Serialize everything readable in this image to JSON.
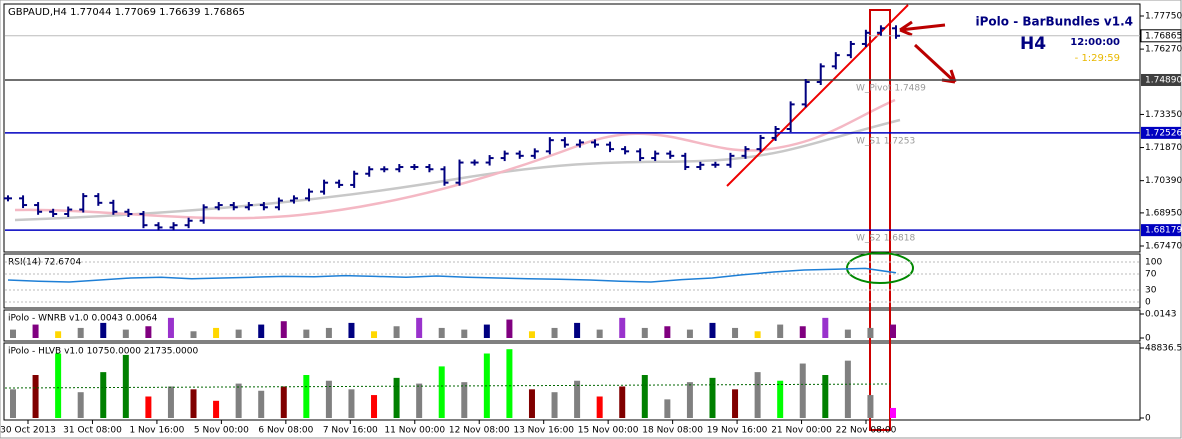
{
  "header": "GBPAUD,H4  1.77044 1.77069 1.76639 1.76865",
  "indicator": {
    "name": "iPolo - BarBundles v1.4",
    "timeframe": "H4",
    "time": "12:00:00",
    "countdown": "- 1:29:59"
  },
  "price_axis": {
    "lim": [
      1.6747,
      1.7775
    ],
    "ticks": [
      {
        "value": 1.7775,
        "label": "1.77750"
      },
      {
        "value": 1.7627,
        "label": "1.76270"
      },
      {
        "value": 1.7335,
        "label": "1.73350"
      },
      {
        "value": 1.7187,
        "label": "1.71870"
      },
      {
        "value": 1.7039,
        "label": "1.70390"
      },
      {
        "value": 1.6895,
        "label": "1.68950"
      },
      {
        "value": 1.6747,
        "label": "1.67470"
      }
    ]
  },
  "current_price": {
    "value": 1.76865,
    "label": "1.76865"
  },
  "levels": [
    {
      "value": 1.7489,
      "axis_label": "1.74890",
      "name": "W_Pivot 1.7489",
      "color": "#404040"
    },
    {
      "value": 1.72526,
      "axis_label": "1.72526",
      "name": "W_S1 1.7253",
      "color": "#0000c0"
    },
    {
      "value": 1.68179,
      "axis_label": "1.68179",
      "name": "W_S2 1.6818",
      "color": "#0000c0"
    }
  ],
  "closes": [
    1.696,
    1.693,
    1.69,
    1.689,
    1.691,
    1.697,
    1.694,
    1.69,
    1.689,
    1.684,
    1.683,
    1.684,
    1.686,
    1.692,
    1.693,
    1.692,
    1.693,
    1.692,
    1.695,
    1.696,
    1.699,
    1.703,
    1.702,
    1.707,
    1.709,
    1.709,
    1.71,
    1.71,
    1.709,
    1.703,
    1.712,
    1.712,
    1.714,
    1.716,
    1.715,
    1.717,
    1.722,
    1.72,
    1.721,
    1.72,
    1.718,
    1.717,
    1.714,
    1.716,
    1.715,
    1.71,
    1.711,
    1.711,
    1.715,
    1.718,
    1.723,
    1.727,
    1.738,
    1.748,
    1.755,
    1.76,
    1.765,
    1.77,
    1.772,
    1.76865
  ],
  "rsi": {
    "title": "RSI(14) 72.6704",
    "lim": [
      0,
      100
    ],
    "ticks": [
      100,
      70,
      30,
      0
    ],
    "values": [
      55,
      52,
      50,
      55,
      60,
      62,
      58,
      60,
      62,
      64,
      63,
      66,
      64,
      62,
      65,
      62,
      60,
      58,
      57,
      55,
      52,
      50,
      56,
      60,
      68,
      75,
      80,
      82,
      84,
      73
    ]
  },
  "wnrb": {
    "title": "iPolo - WNRB v1.0 0.0043 0.0064",
    "lim": [
      0,
      0.0143
    ],
    "ticks": [
      {
        "value": 0.0143,
        "label": "0.0143"
      },
      0
    ],
    "values": [
      0.005,
      0.008,
      0.004,
      0.006,
      0.009,
      0.005,
      0.007,
      0.012,
      0.004,
      0.006,
      0.005,
      0.008,
      0.01,
      0.005,
      0.006,
      0.009,
      0.004,
      0.007,
      0.012,
      0.006,
      0.005,
      0.008,
      0.011,
      0.004,
      0.006,
      0.009,
      0.005,
      0.012,
      0.006,
      0.007,
      0.005,
      0.009,
      0.006,
      0.004,
      0.008,
      0.007,
      0.012,
      0.005,
      0.006,
      0.008
    ],
    "colors": [
      "#808080",
      "#800080",
      "#ffd700",
      "#808080",
      "#000080",
      "#808080",
      "#800080",
      "#9932cc",
      "#808080",
      "#ffd700",
      "#808080",
      "#000080",
      "#800080",
      "#808080",
      "#808080",
      "#000080",
      "#ffd700",
      "#808080",
      "#9932cc",
      "#808080",
      "#808080",
      "#000080",
      "#800080",
      "#ffd700",
      "#808080",
      "#000080",
      "#808080",
      "#9932cc",
      "#808080",
      "#800080",
      "#808080",
      "#000080",
      "#808080",
      "#ffd700",
      "#808080",
      "#800080",
      "#9932cc",
      "#808080",
      "#808080",
      "#800080"
    ]
  },
  "hlvb": {
    "title": "iPolo - HLVB v1.0 10750.0000 21735.0000",
    "lim": [
      0,
      48836.55
    ],
    "ticks": [
      48836.55,
      0
    ],
    "values": [
      20000,
      30000,
      45000,
      18000,
      32000,
      44000,
      15000,
      22000,
      20000,
      12000,
      24000,
      19000,
      22000,
      30000,
      26000,
      20000,
      16000,
      28000,
      24000,
      36000,
      25000,
      45000,
      48000,
      20000,
      18000,
      26000,
      15000,
      22000,
      30000,
      13000,
      25000,
      28000,
      20000,
      32000,
      26000,
      38000,
      30000,
      40000,
      16000,
      7000
    ],
    "colors": [
      "#808080",
      "#800000",
      "#00ff00",
      "#808080",
      "#008000",
      "#008000",
      "#ff0000",
      "#808080",
      "#800000",
      "#ff0000",
      "#808080",
      "#808080",
      "#800000",
      "#00ff00",
      "#808080",
      "#808080",
      "#ff0000",
      "#008000",
      "#808080",
      "#00ff00",
      "#808080",
      "#00ff00",
      "#00ff00",
      "#800000",
      "#808080",
      "#808080",
      "#ff0000",
      "#800000",
      "#008000",
      "#808080",
      "#808080",
      "#008000",
      "#800000",
      "#808080",
      "#00ff00",
      "#808080",
      "#008000",
      "#808080",
      "#808080",
      "#ff00ff"
    ]
  },
  "time_labels": [
    "30 Oct 2013",
    "31 Oct 08:00",
    "1 Nov 16:00",
    "5 Nov 00:00",
    "6 Nov 08:00",
    "7 Nov 16:00",
    "11 Nov 00:00",
    "12 Nov 08:00",
    "13 Nov 16:00",
    "15 Nov 00:00",
    "18 Nov 08:00",
    "19 Nov 16:00",
    "21 Nov 00:00",
    "22 Nov 08:00"
  ]
}
